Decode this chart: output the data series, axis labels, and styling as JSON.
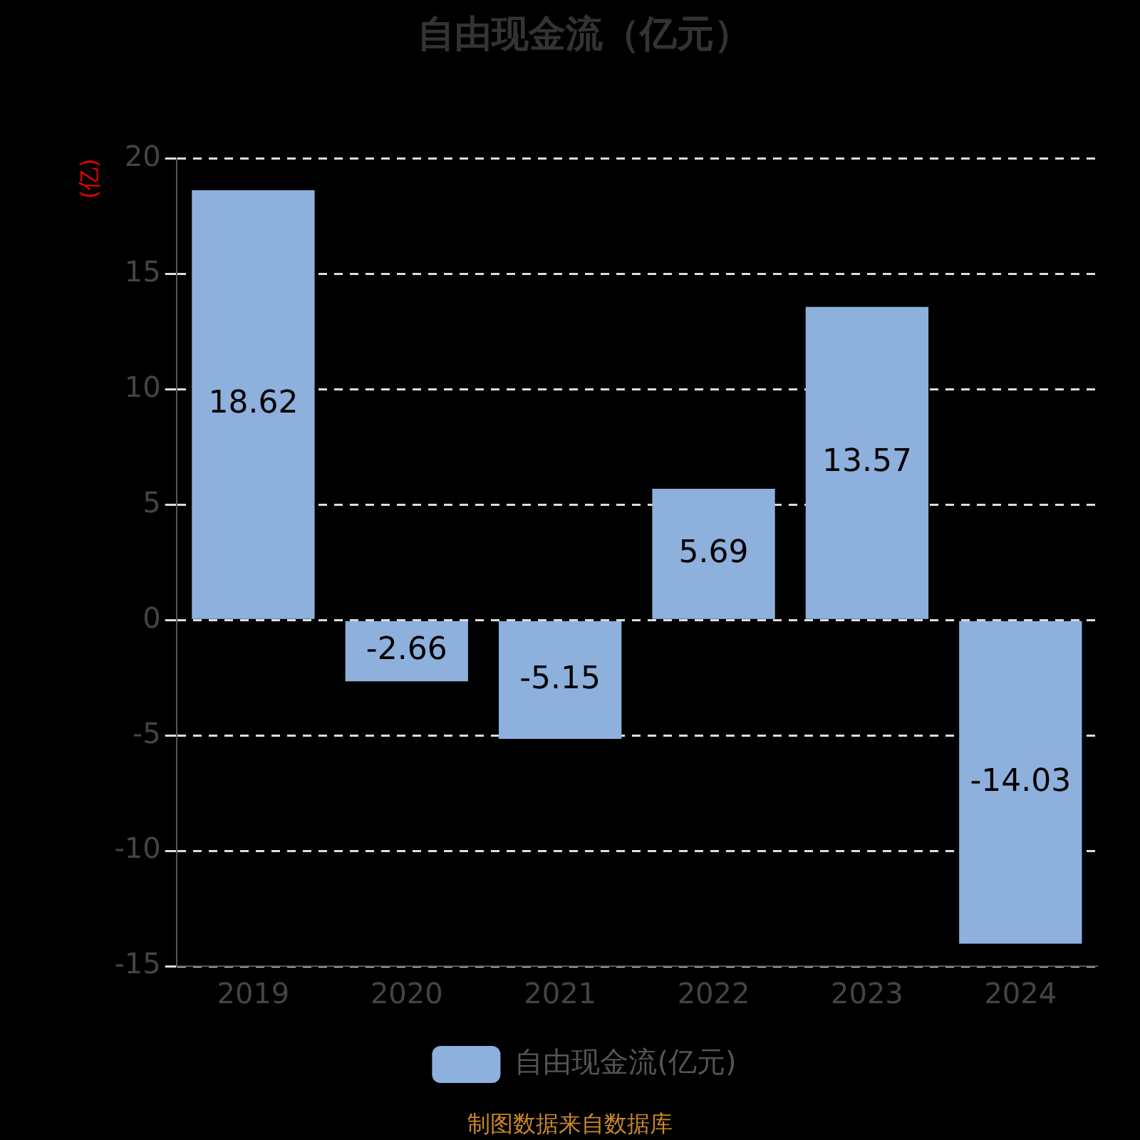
{
  "chart_data": {
    "type": "bar",
    "title": "自由现金流（亿元）",
    "ylabel": "(亿)",
    "categories": [
      "2019",
      "2020",
      "2021",
      "2022",
      "2023",
      "2024"
    ],
    "series": [
      {
        "name": "自由现金流(亿元)",
        "color": "#8eb0dc",
        "values": [
          18.62,
          -2.66,
          -5.15,
          5.69,
          13.57,
          -14.03
        ]
      }
    ],
    "ylim": [
      -15,
      20
    ],
    "yticks": [
      -15,
      -10,
      -5,
      0,
      5,
      10,
      15,
      20
    ],
    "grid": "y",
    "legend": "bottom",
    "data_labels": true,
    "annotations": [
      "制图数据来自数据库"
    ]
  }
}
